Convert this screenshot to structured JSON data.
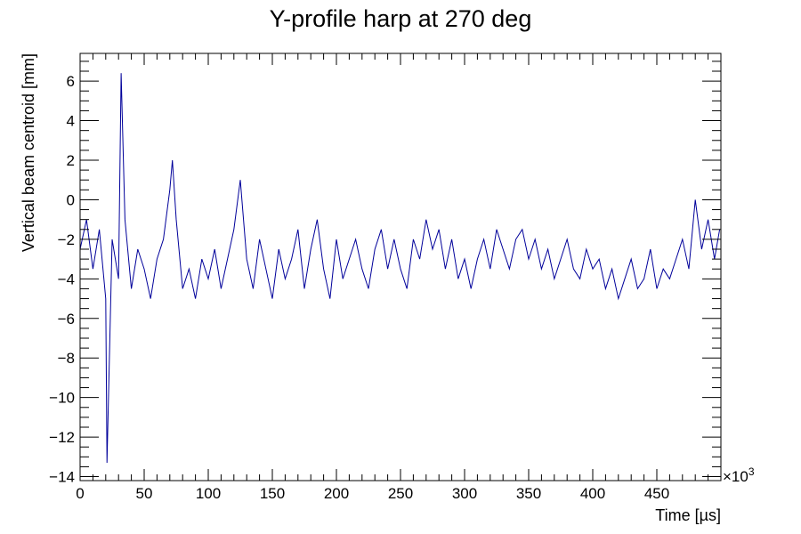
{
  "chart_data": {
    "type": "line",
    "title": "Y-profile harp at 270 deg",
    "xlabel": "Time [µs]",
    "ylabel": "Vertical beam centroid [mm]",
    "x_multiplier_label": "×10",
    "x_multiplier_exponent": "3",
    "xlim": [
      0,
      500000
    ],
    "ylim": [
      -14.2,
      7.4
    ],
    "x_ticks": [
      0,
      50000,
      100000,
      150000,
      200000,
      250000,
      300000,
      350000,
      400000,
      450000
    ],
    "x_tick_labels": [
      "0",
      "50",
      "100",
      "150",
      "200",
      "250",
      "300",
      "350",
      "400",
      "450"
    ],
    "y_ticks": [
      -14,
      -12,
      -10,
      -8,
      -6,
      -4,
      -2,
      0,
      2,
      4,
      6
    ],
    "y_tick_labels": [
      "−14",
      "−12",
      "−10",
      "−8",
      "−6",
      "−4",
      "−2",
      "0",
      "2",
      "4",
      "6"
    ],
    "grid": false,
    "series": [
      {
        "color": "#00009a",
        "x": [
          0,
          5000,
          10000,
          15000,
          20000,
          21000,
          25000,
          30000,
          32000,
          35000,
          40000,
          45000,
          50000,
          55000,
          60000,
          65000,
          70000,
          72000,
          75000,
          80000,
          85000,
          90000,
          95000,
          100000,
          105000,
          110000,
          115000,
          120000,
          125000,
          130000,
          135000,
          140000,
          145000,
          150000,
          155000,
          160000,
          165000,
          170000,
          175000,
          180000,
          185000,
          190000,
          195000,
          200000,
          205000,
          210000,
          215000,
          220000,
          225000,
          230000,
          235000,
          240000,
          245000,
          250000,
          255000,
          260000,
          265000,
          270000,
          275000,
          280000,
          285000,
          290000,
          295000,
          300000,
          305000,
          310000,
          315000,
          320000,
          325000,
          330000,
          335000,
          340000,
          345000,
          350000,
          355000,
          360000,
          365000,
          370000,
          375000,
          380000,
          385000,
          390000,
          395000,
          400000,
          405000,
          410000,
          415000,
          420000,
          425000,
          430000,
          435000,
          440000,
          445000,
          450000,
          455000,
          460000,
          465000,
          470000,
          475000,
          480000,
          485000,
          490000,
          495000,
          499000
        ],
        "y": [
          -2.5,
          -1.0,
          -3.5,
          -1.5,
          -5.0,
          -13.3,
          -2.0,
          -4.0,
          6.4,
          -1.0,
          -4.5,
          -2.5,
          -3.5,
          -5.0,
          -3.0,
          -2.0,
          0.5,
          2.0,
          -1.0,
          -4.5,
          -3.5,
          -5.0,
          -3.0,
          -4.0,
          -2.5,
          -4.5,
          -3.0,
          -1.5,
          1.0,
          -3.0,
          -4.5,
          -2.0,
          -3.5,
          -5.0,
          -2.5,
          -4.0,
          -3.0,
          -1.5,
          -4.5,
          -2.5,
          -1.0,
          -3.5,
          -5.0,
          -2.0,
          -4.0,
          -3.0,
          -2.0,
          -3.5,
          -4.5,
          -2.5,
          -1.5,
          -3.5,
          -2.0,
          -3.5,
          -4.5,
          -2.0,
          -3.0,
          -1.0,
          -2.5,
          -1.5,
          -3.5,
          -2.0,
          -4.0,
          -3.0,
          -4.5,
          -3.0,
          -2.0,
          -3.5,
          -1.5,
          -2.5,
          -3.5,
          -2.0,
          -1.5,
          -3.0,
          -2.0,
          -3.5,
          -2.5,
          -4.0,
          -3.0,
          -2.0,
          -3.5,
          -4.0,
          -2.5,
          -3.5,
          -3.0,
          -4.5,
          -3.5,
          -5.0,
          -4.0,
          -3.0,
          -4.5,
          -4.0,
          -2.5,
          -4.5,
          -3.5,
          -4.0,
          -3.0,
          -2.0,
          -3.5,
          0.0,
          -2.5,
          -1.0,
          -3.0,
          -1.5
        ]
      }
    ]
  }
}
